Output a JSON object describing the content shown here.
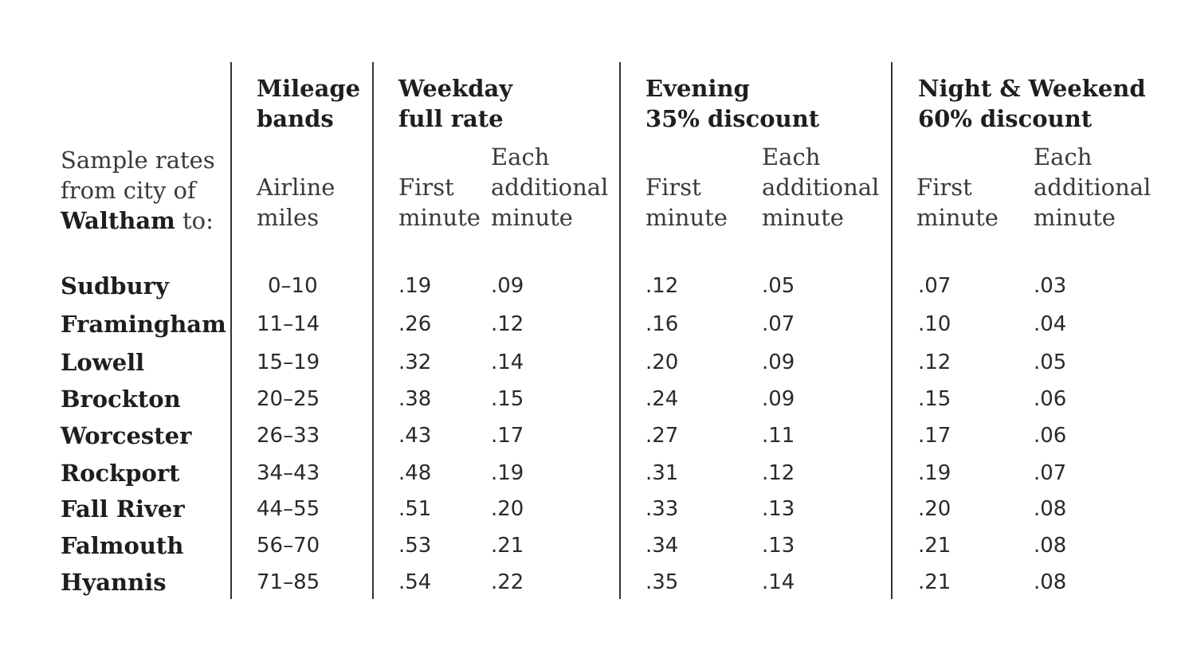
{
  "table": {
    "intro": {
      "line1": "Sample rates",
      "line2": "from city of",
      "city": "Waltham",
      "suffix": " to:"
    },
    "groups": {
      "mileage": {
        "line1": "Mileage",
        "line2": "bands",
        "sub": [
          "Airline",
          "miles"
        ]
      },
      "weekday": {
        "line1": "Weekday",
        "line2": "full rate"
      },
      "evening": {
        "line1": "Evening",
        "line2": "35% discount"
      },
      "night": {
        "line1": "Night & Weekend",
        "line2": "60% discount"
      }
    },
    "subheaders": {
      "first": [
        "First",
        "minute"
      ],
      "additional": [
        "Each",
        "additional",
        "minute"
      ]
    },
    "rows": [
      {
        "city": "Sudbury",
        "miles": "0–10",
        "weekday_first": ".19",
        "weekday_add": ".09",
        "evening_first": ".12",
        "evening_add": ".05",
        "night_first": ".07",
        "night_add": ".03"
      },
      {
        "city": "Framingham",
        "miles": "11–14",
        "weekday_first": ".26",
        "weekday_add": ".12",
        "evening_first": ".16",
        "evening_add": ".07",
        "night_first": ".10",
        "night_add": ".04"
      },
      {
        "city": "Lowell",
        "miles": "15–19",
        "weekday_first": ".32",
        "weekday_add": ".14",
        "evening_first": ".20",
        "evening_add": ".09",
        "night_first": ".12",
        "night_add": ".05"
      },
      {
        "city": "Brockton",
        "miles": "20–25",
        "weekday_first": ".38",
        "weekday_add": ".15",
        "evening_first": ".24",
        "evening_add": ".09",
        "night_first": ".15",
        "night_add": ".06"
      },
      {
        "city": "Worcester",
        "miles": "26–33",
        "weekday_first": ".43",
        "weekday_add": ".17",
        "evening_first": ".27",
        "evening_add": ".11",
        "night_first": ".17",
        "night_add": ".06"
      },
      {
        "city": "Rockport",
        "miles": "34–43",
        "weekday_first": ".48",
        "weekday_add": ".19",
        "evening_first": ".31",
        "evening_add": ".12",
        "night_first": ".19",
        "night_add": ".07"
      },
      {
        "city": "Fall River",
        "miles": "44–55",
        "weekday_first": ".51",
        "weekday_add": ".20",
        "evening_first": ".33",
        "evening_add": ".13",
        "night_first": ".20",
        "night_add": ".08"
      },
      {
        "city": "Falmouth",
        "miles": "56–70",
        "weekday_first": ".53",
        "weekday_add": ".21",
        "evening_first": ".34",
        "evening_add": ".13",
        "night_first": ".21",
        "night_add": ".08"
      },
      {
        "city": "Hyannis",
        "miles": "71–85",
        "weekday_first": ".54",
        "weekday_add": ".22",
        "evening_first": ".35",
        "evening_add": ".14",
        "night_first": ".21",
        "night_add": ".08"
      }
    ]
  }
}
